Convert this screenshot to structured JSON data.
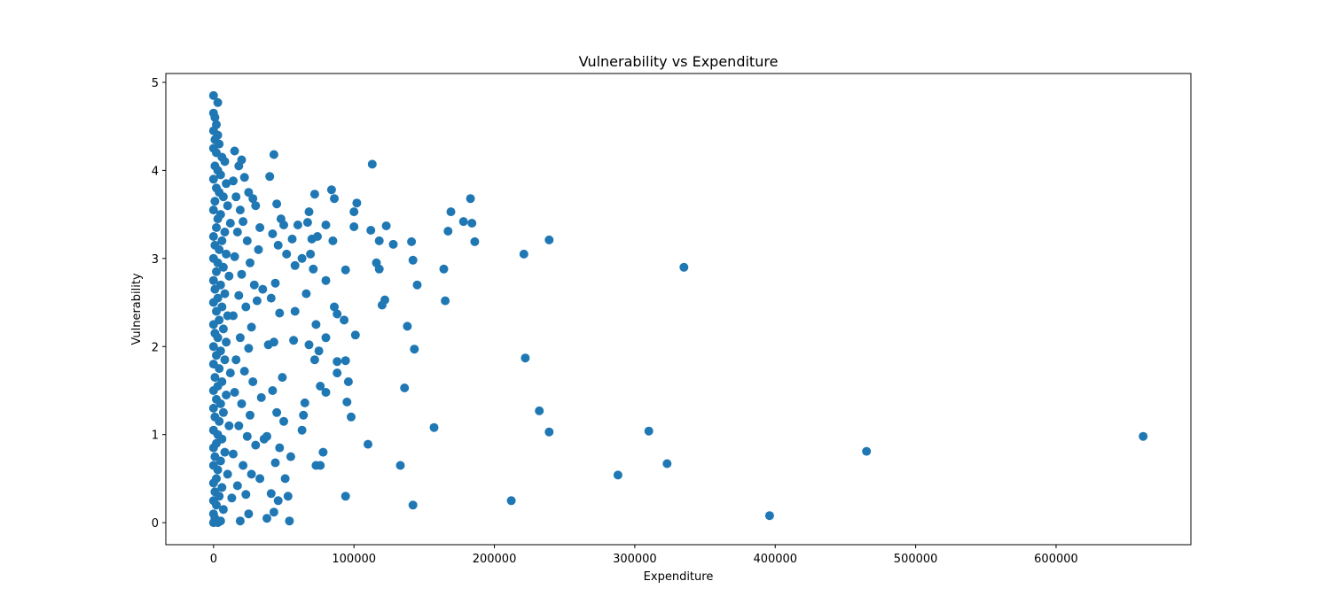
{
  "chart_data": {
    "type": "scatter",
    "title": "Vulnerability vs Expenditure",
    "xlabel": "Expenditure",
    "ylabel": "Vulnerability",
    "xlim": [
      -34000,
      696000
    ],
    "ylim": [
      -0.25,
      5.1
    ],
    "xticks": [
      0,
      100000,
      200000,
      300000,
      400000,
      500000,
      600000
    ],
    "xtick_labels": [
      "0",
      "100000",
      "200000",
      "300000",
      "400000",
      "500000",
      "600000"
    ],
    "yticks": [
      0,
      1,
      2,
      3,
      4,
      5
    ],
    "ytick_labels": [
      "0",
      "1",
      "2",
      "3",
      "4",
      "5"
    ],
    "grid": false,
    "legend": "none",
    "marker_color": "#1f77b4",
    "series": [
      {
        "points": [
          [
            0,
            4.85
          ],
          [
            3000,
            4.77
          ],
          [
            0,
            4.65
          ],
          [
            1000,
            4.6
          ],
          [
            2000,
            4.52
          ],
          [
            0,
            4.45
          ],
          [
            3000,
            4.4
          ],
          [
            1000,
            4.35
          ],
          [
            4000,
            4.3
          ],
          [
            0,
            4.25
          ],
          [
            2000,
            4.2
          ],
          [
            6000,
            4.15
          ],
          [
            8000,
            4.1
          ],
          [
            1000,
            4.05
          ],
          [
            3000,
            4.0
          ],
          [
            5000,
            3.95
          ],
          [
            0,
            3.9
          ],
          [
            9000,
            3.85
          ],
          [
            2000,
            3.8
          ],
          [
            4000,
            3.75
          ],
          [
            7000,
            3.7
          ],
          [
            1000,
            3.65
          ],
          [
            10000,
            3.6
          ],
          [
            0,
            3.55
          ],
          [
            5000,
            3.5
          ],
          [
            3000,
            3.45
          ],
          [
            12000,
            3.4
          ],
          [
            2000,
            3.35
          ],
          [
            8000,
            3.3
          ],
          [
            0,
            3.25
          ],
          [
            6000,
            3.2
          ],
          [
            1000,
            3.15
          ],
          [
            4000,
            3.1
          ],
          [
            9000,
            3.05
          ],
          [
            0,
            3.0
          ],
          [
            3000,
            2.95
          ],
          [
            7000,
            2.9
          ],
          [
            2000,
            2.85
          ],
          [
            11000,
            2.8
          ],
          [
            0,
            2.75
          ],
          [
            5000,
            2.7
          ],
          [
            1000,
            2.65
          ],
          [
            8000,
            2.6
          ],
          [
            3000,
            2.55
          ],
          [
            0,
            2.5
          ],
          [
            6000,
            2.45
          ],
          [
            2000,
            2.4
          ],
          [
            10000,
            2.35
          ],
          [
            4000,
            2.3
          ],
          [
            0,
            2.25
          ],
          [
            7000,
            2.2
          ],
          [
            1000,
            2.15
          ],
          [
            3000,
            2.1
          ],
          [
            9000,
            2.05
          ],
          [
            0,
            2.0
          ],
          [
            5000,
            1.95
          ],
          [
            2000,
            1.9
          ],
          [
            8000,
            1.85
          ],
          [
            0,
            1.8
          ],
          [
            4000,
            1.75
          ],
          [
            12000,
            1.7
          ],
          [
            1000,
            1.65
          ],
          [
            6000,
            1.6
          ],
          [
            3000,
            1.55
          ],
          [
            0,
            1.5
          ],
          [
            9000,
            1.45
          ],
          [
            2000,
            1.4
          ],
          [
            5000,
            1.35
          ],
          [
            0,
            1.3
          ],
          [
            7000,
            1.25
          ],
          [
            1000,
            1.2
          ],
          [
            4000,
            1.15
          ],
          [
            11000,
            1.1
          ],
          [
            0,
            1.05
          ],
          [
            3000,
            1.0
          ],
          [
            6000,
            0.95
          ],
          [
            2000,
            0.9
          ],
          [
            0,
            0.85
          ],
          [
            8000,
            0.8
          ],
          [
            1000,
            0.75
          ],
          [
            5000,
            0.7
          ],
          [
            0,
            0.65
          ],
          [
            3000,
            0.6
          ],
          [
            10000,
            0.55
          ],
          [
            2000,
            0.5
          ],
          [
            0,
            0.45
          ],
          [
            6000,
            0.4
          ],
          [
            1000,
            0.35
          ],
          [
            4000,
            0.3
          ],
          [
            0,
            0.25
          ],
          [
            2000,
            0.2
          ],
          [
            7000,
            0.15
          ],
          [
            0,
            0.1
          ],
          [
            1000,
            0.05
          ],
          [
            0,
            0.0
          ],
          [
            3000,
            0.0
          ],
          [
            5000,
            0.02
          ],
          [
            15000,
            4.22
          ],
          [
            18000,
            4.05
          ],
          [
            20000,
            4.12
          ],
          [
            14000,
            3.88
          ],
          [
            22000,
            3.92
          ],
          [
            16000,
            3.7
          ],
          [
            25000,
            3.75
          ],
          [
            19000,
            3.55
          ],
          [
            28000,
            3.68
          ],
          [
            21000,
            3.42
          ],
          [
            30000,
            3.6
          ],
          [
            17000,
            3.3
          ],
          [
            24000,
            3.2
          ],
          [
            32000,
            3.1
          ],
          [
            15000,
            3.02
          ],
          [
            26000,
            2.95
          ],
          [
            20000,
            2.82
          ],
          [
            29000,
            2.7
          ],
          [
            18000,
            2.58
          ],
          [
            23000,
            2.45
          ],
          [
            31000,
            2.52
          ],
          [
            14000,
            2.35
          ],
          [
            27000,
            2.22
          ],
          [
            19000,
            2.1
          ],
          [
            25000,
            1.98
          ],
          [
            16000,
            1.85
          ],
          [
            22000,
            1.72
          ],
          [
            28000,
            1.6
          ],
          [
            15000,
            1.48
          ],
          [
            20000,
            1.35
          ],
          [
            26000,
            1.22
          ],
          [
            18000,
            1.1
          ],
          [
            24000,
            0.98
          ],
          [
            30000,
            0.88
          ],
          [
            14000,
            0.78
          ],
          [
            21000,
            0.65
          ],
          [
            27000,
            0.55
          ],
          [
            17000,
            0.42
          ],
          [
            23000,
            0.32
          ],
          [
            25000,
            0.1
          ],
          [
            19000,
            0.02
          ],
          [
            13000,
            0.28
          ],
          [
            33000,
            3.35
          ],
          [
            35000,
            2.65
          ],
          [
            34000,
            1.42
          ],
          [
            36000,
            0.95
          ],
          [
            33000,
            0.5
          ],
          [
            40000,
            3.93
          ],
          [
            43000,
            4.18
          ],
          [
            45000,
            3.62
          ],
          [
            48000,
            3.45
          ],
          [
            42000,
            3.28
          ],
          [
            50000,
            3.38
          ],
          [
            46000,
            3.15
          ],
          [
            52000,
            3.05
          ],
          [
            44000,
            2.72
          ],
          [
            41000,
            2.55
          ],
          [
            47000,
            2.38
          ],
          [
            43000,
            2.05
          ],
          [
            49000,
            1.65
          ],
          [
            42000,
            1.5
          ],
          [
            45000,
            1.25
          ],
          [
            50000,
            1.15
          ],
          [
            38000,
            0.98
          ],
          [
            47000,
            0.85
          ],
          [
            44000,
            0.68
          ],
          [
            51000,
            0.5
          ],
          [
            41000,
            0.33
          ],
          [
            43000,
            0.12
          ],
          [
            46000,
            0.25
          ],
          [
            53000,
            0.3
          ],
          [
            54000,
            0.02
          ],
          [
            38000,
            0.05
          ],
          [
            56000,
            3.22
          ],
          [
            58000,
            2.92
          ],
          [
            55000,
            0.75
          ],
          [
            39000,
            2.02
          ],
          [
            60000,
            3.38
          ],
          [
            63000,
            3.0
          ],
          [
            67000,
            3.41
          ],
          [
            68000,
            3.53
          ],
          [
            70000,
            3.22
          ],
          [
            72000,
            3.73
          ],
          [
            74000,
            3.25
          ],
          [
            69000,
            3.05
          ],
          [
            71000,
            2.88
          ],
          [
            66000,
            2.6
          ],
          [
            73000,
            2.25
          ],
          [
            75000,
            1.95
          ],
          [
            68000,
            2.02
          ],
          [
            72000,
            1.85
          ],
          [
            76000,
            1.55
          ],
          [
            65000,
            1.36
          ],
          [
            64000,
            1.22
          ],
          [
            63000,
            1.05
          ],
          [
            73000,
            0.65
          ],
          [
            76000,
            0.65
          ],
          [
            58000,
            2.4
          ],
          [
            57000,
            2.07
          ],
          [
            80000,
            3.38
          ],
          [
            84000,
            3.78
          ],
          [
            86000,
            3.68
          ],
          [
            85000,
            3.2
          ],
          [
            88000,
            2.37
          ],
          [
            80000,
            2.75
          ],
          [
            86000,
            2.45
          ],
          [
            80000,
            2.1
          ],
          [
            88000,
            1.83
          ],
          [
            80000,
            1.48
          ],
          [
            78000,
            0.8
          ],
          [
            94000,
            2.87
          ],
          [
            93000,
            2.3
          ],
          [
            94000,
            1.84
          ],
          [
            88000,
            1.7
          ],
          [
            96000,
            1.6
          ],
          [
            95000,
            1.37
          ],
          [
            98000,
            1.2
          ],
          [
            94000,
            0.3
          ],
          [
            100000,
            3.36
          ],
          [
            102000,
            3.63
          ],
          [
            100000,
            3.53
          ],
          [
            101000,
            2.13
          ],
          [
            110000,
            0.89
          ],
          [
            112000,
            3.32
          ],
          [
            113000,
            4.07
          ],
          [
            118000,
            3.2
          ],
          [
            116000,
            2.95
          ],
          [
            118000,
            2.88
          ],
          [
            122000,
            2.53
          ],
          [
            120000,
            2.47
          ],
          [
            123000,
            3.37
          ],
          [
            128000,
            3.16
          ],
          [
            133000,
            0.65
          ],
          [
            136000,
            1.53
          ],
          [
            138000,
            2.23
          ],
          [
            141000,
            3.19
          ],
          [
            142000,
            2.98
          ],
          [
            143000,
            1.97
          ],
          [
            145000,
            2.7
          ],
          [
            142000,
            0.2
          ],
          [
            157000,
            1.08
          ],
          [
            164000,
            2.88
          ],
          [
            165000,
            2.52
          ],
          [
            167000,
            3.31
          ],
          [
            169000,
            3.53
          ],
          [
            178000,
            3.42
          ],
          [
            183000,
            3.68
          ],
          [
            184000,
            3.4
          ],
          [
            186000,
            3.19
          ],
          [
            212000,
            0.25
          ],
          [
            221000,
            3.05
          ],
          [
            222000,
            1.87
          ],
          [
            232000,
            1.27
          ],
          [
            239000,
            1.03
          ],
          [
            239000,
            3.21
          ],
          [
            288000,
            0.54
          ],
          [
            310000,
            1.04
          ],
          [
            323000,
            0.67
          ],
          [
            335000,
            2.9
          ],
          [
            396000,
            0.08
          ],
          [
            465000,
            0.81
          ],
          [
            662000,
            0.98
          ]
        ]
      }
    ]
  }
}
